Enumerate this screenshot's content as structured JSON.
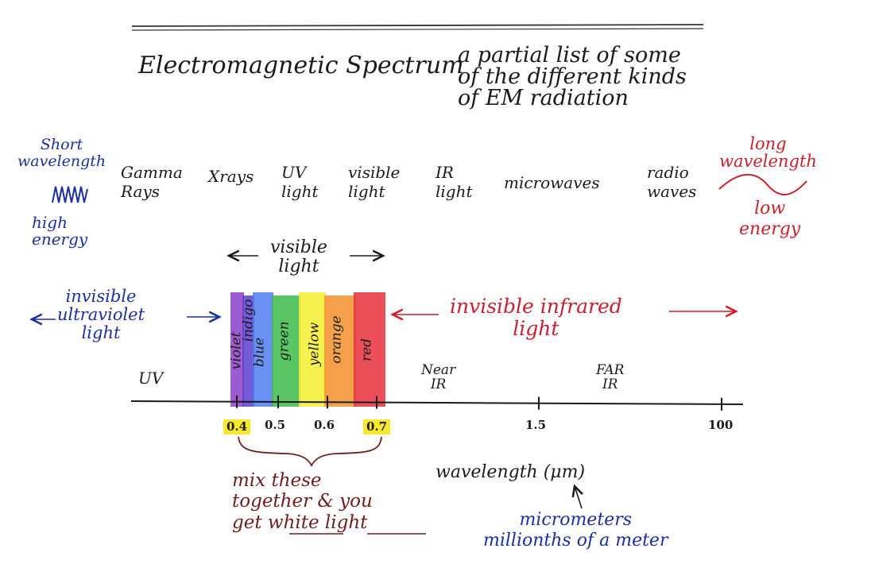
{
  "title": {
    "main": "Electromagnetic Spectrum",
    "subtitle": "a partial list of some\nof the different kinds\nof EM radiation"
  },
  "short_side": {
    "label": "Short\nwavelength",
    "energy": "high\nenergy"
  },
  "long_side": {
    "label": "long\nwavelength",
    "energy": "low\nenergy"
  },
  "radiation_types": [
    "Gamma\nRays",
    "Xrays",
    "UV\nlight",
    "visible\nlight",
    "IR\nlight",
    "microwaves",
    "radio\nwaves"
  ],
  "visible_header": "visible\nlight",
  "invisible_uv": "invisible\nultraviolet\nlight",
  "invisible_ir": "invisible infrared\nlight",
  "colors": [
    {
      "name": "violet",
      "hex": "#8e3fc9"
    },
    {
      "name": "indigo",
      "hex": "#5a3fd0"
    },
    {
      "name": "blue",
      "hex": "#4f7cf0"
    },
    {
      "name": "green",
      "hex": "#3dbb4a"
    },
    {
      "name": "yellow",
      "hex": "#f6ee30"
    },
    {
      "name": "orange",
      "hex": "#f3902c"
    },
    {
      "name": "red",
      "hex": "#e8303c"
    }
  ],
  "region_labels": {
    "uv": "UV",
    "near_ir": "Near\nIR",
    "far_ir": "FAR\nIR"
  },
  "axis": {
    "ticks": [
      {
        "label": "0.4",
        "highlighted": true
      },
      {
        "label": "0.5",
        "highlighted": false
      },
      {
        "label": "0.6",
        "highlighted": false
      },
      {
        "label": "0.7",
        "highlighted": true
      },
      {
        "label": "1.5",
        "highlighted": false
      },
      {
        "label": "100",
        "highlighted": false
      }
    ],
    "xlabel": "wavelength (μm)"
  },
  "mix_note": {
    "line1": "mix these\ntogether & you\nget ",
    "white": "white",
    "light": "light"
  },
  "unit_note": "micrometers\nmillionths of a meter",
  "highlight_color": "#f8ea2a"
}
